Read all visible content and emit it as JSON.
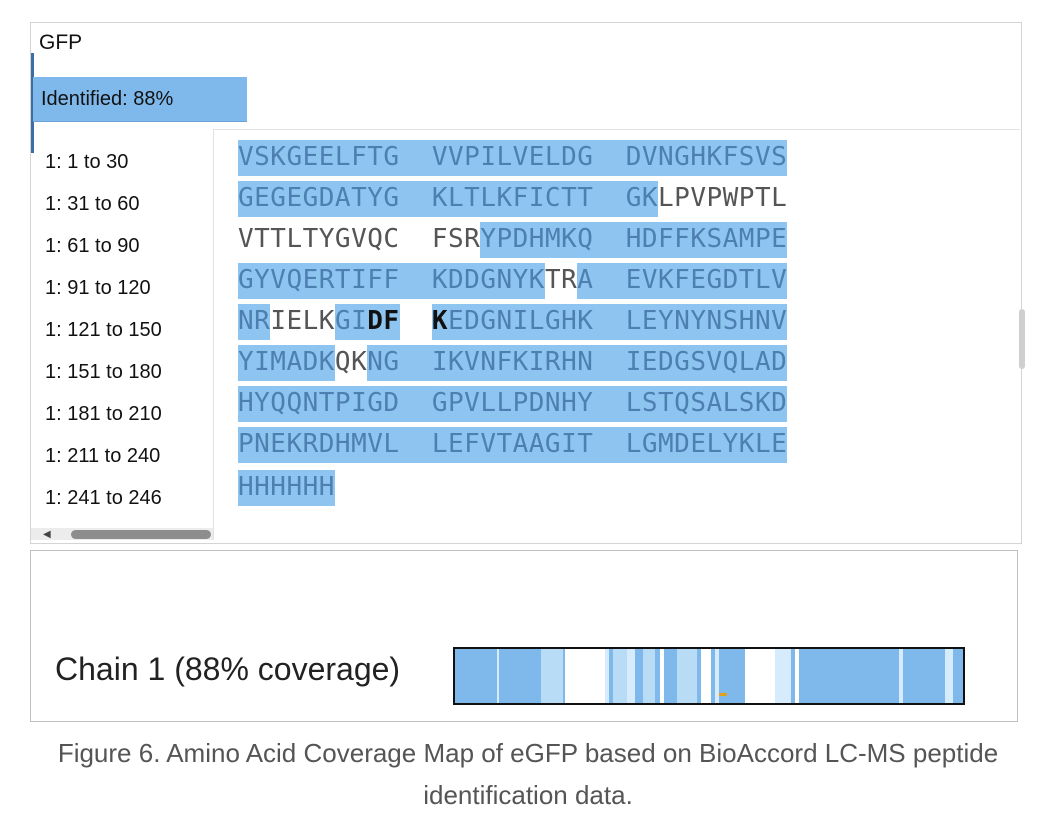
{
  "protein": {
    "name": "GFP",
    "identified_label": "Identified: 88%"
  },
  "ranges": [
    "1: 1 to 30",
    "1: 31 to 60",
    "1: 61 to 90",
    "1: 91 to 120",
    "1: 121 to 150",
    "1: 151 to 180",
    "1: 181 to 210",
    "1: 211 to 240",
    "1: 241 to 246"
  ],
  "sequence_rows": [
    [
      {
        "t": "VSKGEELFTG",
        "c": "cov"
      },
      {
        "t": "  ",
        "c": "cov"
      },
      {
        "t": "VVPILVELDG",
        "c": "cov"
      },
      {
        "t": "  ",
        "c": "cov"
      },
      {
        "t": "DVNGHKFSVS",
        "c": "cov"
      }
    ],
    [
      {
        "t": "GEGEGDATYG",
        "c": "cov"
      },
      {
        "t": "  ",
        "c": "cov"
      },
      {
        "t": "KLTLKFICTT",
        "c": "cov"
      },
      {
        "t": "  ",
        "c": "cov"
      },
      {
        "t": "GK",
        "c": "cov"
      },
      {
        "t": "LPVPWPTL",
        "c": "unc"
      }
    ],
    [
      {
        "t": "VTTLTYGVQC",
        "c": "unc"
      },
      {
        "t": "  ",
        "c": "unc"
      },
      {
        "t": "FSR",
        "c": "unc"
      },
      {
        "t": "YPDHMKQ",
        "c": "cov"
      },
      {
        "t": "  ",
        "c": "cov"
      },
      {
        "t": "HDFFKSAMPE",
        "c": "cov"
      }
    ],
    [
      {
        "t": "GYVQERTIFF",
        "c": "cov"
      },
      {
        "t": "  ",
        "c": "cov"
      },
      {
        "t": "KDDGNYK",
        "c": "cov"
      },
      {
        "t": "TR",
        "c": "unc"
      },
      {
        "t": "A",
        "c": "cov"
      },
      {
        "t": "  ",
        "c": "cov"
      },
      {
        "t": "EVKFEGDTLV",
        "c": "cov"
      }
    ],
    [
      {
        "t": "NR",
        "c": "cov"
      },
      {
        "t": "IELK",
        "c": "unc"
      },
      {
        "t": "GI",
        "c": "cov"
      },
      {
        "t": "DF",
        "c": "bold"
      },
      {
        "t": "  ",
        "c": "unc"
      },
      {
        "t": "K",
        "c": "bold"
      },
      {
        "t": "EDGNILGHK",
        "c": "cov"
      },
      {
        "t": "  ",
        "c": "cov"
      },
      {
        "t": "LEYNYNSHNV",
        "c": "cov"
      }
    ],
    [
      {
        "t": "YIMADK",
        "c": "cov"
      },
      {
        "t": "QK",
        "c": "unc"
      },
      {
        "t": "NG",
        "c": "cov"
      },
      {
        "t": "  ",
        "c": "cov"
      },
      {
        "t": "IKVNFKIRHN",
        "c": "cov"
      },
      {
        "t": "  ",
        "c": "cov"
      },
      {
        "t": "IEDGSVQLAD",
        "c": "cov"
      }
    ],
    [
      {
        "t": "HYQQNTPIGD",
        "c": "cov"
      },
      {
        "t": "  ",
        "c": "cov"
      },
      {
        "t": "GPVLLPDNHY",
        "c": "cov"
      },
      {
        "t": "  ",
        "c": "cov"
      },
      {
        "t": "LSTQSALSKD",
        "c": "cov"
      }
    ],
    [
      {
        "t": "PNEKRDHMVL",
        "c": "cov"
      },
      {
        "t": "  ",
        "c": "cov"
      },
      {
        "t": "LEFVTAAGIT",
        "c": "cov"
      },
      {
        "t": "  ",
        "c": "cov"
      },
      {
        "t": "LGMDELYKLE",
        "c": "cov"
      }
    ],
    [
      {
        "t": "HHHHHH",
        "c": "cov"
      }
    ]
  ],
  "chain": {
    "label": "Chain  1 (88% coverage)",
    "coverage_percent": 88
  },
  "caption": {
    "line1": "Figure 6. Amino Acid Coverage Map of eGFP based on BioAccord LC-MS peptide",
    "line2": "identification data."
  },
  "colors": {
    "covered": "#8ec5f0",
    "uncovered": "#ffffff",
    "covered_text": "#4e7fb1",
    "bar_fill": "#7fb9ec"
  }
}
